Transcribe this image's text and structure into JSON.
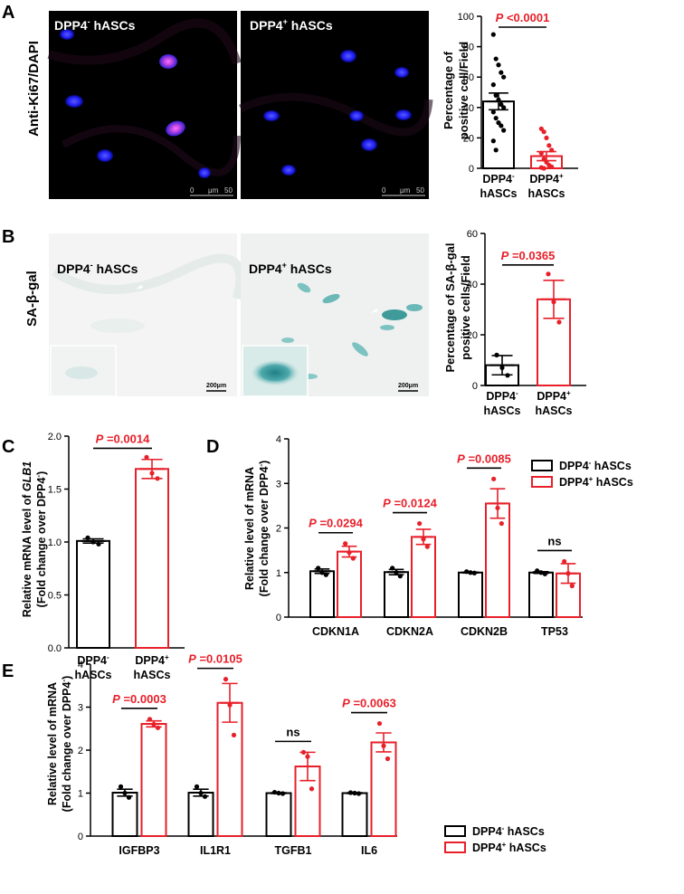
{
  "colors": {
    "black": "#000000",
    "red": "#e8202a",
    "nuclei": "#1c1cf0",
    "stain": "#2f9a9a"
  },
  "panels": {
    "A": {
      "letter": "A",
      "side_label": "Anti-Ki67/DAPI",
      "image_labels": [
        "DPP4",
        "DPP4"
      ],
      "image_sup": [
        "-",
        "+"
      ],
      "image_suffix": " hASCs",
      "scale_bar": [
        "0",
        "μm",
        "50"
      ]
    },
    "B": {
      "letter": "B",
      "side_label": "SA-β-gal",
      "image_labels": [
        "DPP4",
        "DPP4"
      ],
      "image_sup": [
        "-",
        "+"
      ],
      "image_suffix": " hASCs",
      "scale_bar": "200μm"
    },
    "C": {
      "letter": "C"
    },
    "D": {
      "letter": "D"
    },
    "E": {
      "letter": "E"
    }
  },
  "chart_data": [
    {
      "id": "A",
      "type": "bar",
      "ylabel": [
        "Percentage of",
        "positive cell/Field"
      ],
      "ylim": [
        0,
        100
      ],
      "yticks": [
        0,
        20,
        40,
        60,
        80,
        100
      ],
      "categories": [
        [
          "DPP4",
          "-",
          "hASCs"
        ],
        [
          "DPP4",
          "+",
          "hASCs"
        ]
      ],
      "values": [
        44,
        8
      ],
      "errors": [
        5.5,
        3
      ],
      "points": [
        [
          88,
          72,
          68,
          63,
          60,
          55,
          48,
          45,
          42,
          40,
          37,
          33,
          30,
          28,
          25,
          18,
          12
        ],
        [
          26,
          24,
          20,
          15,
          12,
          10,
          6,
          4,
          2,
          1,
          0.5,
          0
        ]
      ],
      "annotations": [
        {
          "label": "P <0.0001",
          "pair": [
            0,
            1
          ]
        }
      ]
    },
    {
      "id": "B",
      "type": "bar",
      "ylabel": [
        "Percentage of SA-β-gal",
        "positive cells/Field"
      ],
      "ylim": [
        0,
        60
      ],
      "yticks": [
        0,
        20,
        40,
        60
      ],
      "categories": [
        [
          "DPP4",
          "-",
          "hASCs"
        ],
        [
          "DPP4",
          "+",
          "hASCs"
        ]
      ],
      "values": [
        8,
        34
      ],
      "errors": [
        3.8,
        7.5
      ],
      "points": [
        [
          12,
          7,
          4
        ],
        [
          44,
          33,
          25
        ]
      ],
      "annotations": [
        {
          "label": "P =0.0365",
          "pair": [
            0,
            1
          ]
        }
      ]
    },
    {
      "id": "C",
      "type": "bar",
      "ylabel": [
        "Relative mRNA level of ",
        "GLB1",
        "(Fold change over DPP4",
        "-",
        ")"
      ],
      "ylim": [
        0,
        2.0
      ],
      "yticks": [
        "0.0",
        "0.5",
        "1.0",
        "1.5",
        "2.0"
      ],
      "categories": [
        [
          "DPP4",
          "-",
          "hASCs"
        ],
        [
          "DPP4",
          "+",
          "hASCs"
        ]
      ],
      "values": [
        1.01,
        1.69
      ],
      "errors": [
        0.02,
        0.09
      ],
      "points": [
        [
          1.04,
          1.0,
          0.98
        ],
        [
          1.8,
          1.65,
          1.6
        ]
      ],
      "annotations": [
        {
          "label": "P =0.0014",
          "pair": [
            0,
            1
          ]
        }
      ]
    },
    {
      "id": "D",
      "type": "bar",
      "ylabel": [
        "Relative level of mRNA",
        "(Fold change over DPP4",
        "-",
        ")"
      ],
      "ylim": [
        0,
        4
      ],
      "yticks": [
        0,
        1,
        2,
        3,
        4
      ],
      "categories": [
        "CDKN1A",
        "CDKN2A",
        "CDKN2B",
        "TP53"
      ],
      "series": [
        {
          "name": "DPP4",
          "sup": "-",
          "suffix": " hASCs",
          "values": [
            1.03,
            1.01,
            1.0,
            1.0
          ],
          "errors": [
            0.05,
            0.06,
            0.01,
            0.02
          ],
          "points": [
            [
              1.1,
              1.0,
              0.95
            ],
            [
              1.1,
              1.0,
              0.92
            ],
            [
              1.02,
              1.0,
              0.99
            ],
            [
              1.04,
              1.0,
              0.97
            ]
          ]
        },
        {
          "name": "DPP4",
          "sup": "+",
          "suffix": " hASCs",
          "values": [
            1.47,
            1.8,
            2.55,
            0.98
          ],
          "errors": [
            0.12,
            0.17,
            0.33,
            0.22
          ],
          "points": [
            [
              1.65,
              1.45,
              1.32
            ],
            [
              2.1,
              1.75,
              1.58
            ],
            [
              3.1,
              2.45,
              2.1
            ],
            [
              1.25,
              0.98,
              0.7
            ]
          ]
        }
      ],
      "annotations": [
        {
          "label": "P =0.0294",
          "group": 0
        },
        {
          "label": "P =0.0124",
          "group": 1
        },
        {
          "label": "P =0.0085",
          "group": 2
        },
        {
          "label": "ns",
          "group": 3
        }
      ]
    },
    {
      "id": "E",
      "type": "bar",
      "ylabel": [
        "Relative level of mRNA",
        "(Fold change over DPP4",
        "-",
        ")"
      ],
      "ylim": [
        0,
        4
      ],
      "yticks": [
        0,
        1,
        2,
        3,
        4
      ],
      "categories": [
        "IGFBP3",
        "IL1R1",
        "TGFB1",
        "IL6"
      ],
      "series": [
        {
          "name": "DPP4",
          "sup": "-",
          "suffix": " hASCs",
          "values": [
            1.01,
            1.01,
            1.0,
            1.0
          ],
          "errors": [
            0.08,
            0.08,
            0.01,
            0.01
          ],
          "points": [
            [
              1.15,
              1.0,
              0.9
            ],
            [
              1.15,
              1.0,
              0.92
            ],
            [
              1.02,
              1.0,
              0.99
            ],
            [
              1.01,
              1.0,
              0.99
            ]
          ]
        },
        {
          "name": "DPP4",
          "sup": "+",
          "suffix": " hASCs",
          "values": [
            2.61,
            3.1,
            1.62,
            2.18
          ],
          "errors": [
            0.07,
            0.45,
            0.33,
            0.22
          ],
          "points": [
            [
              2.72,
              2.6,
              2.52
            ],
            [
              3.65,
              3.05,
              2.35
            ],
            [
              1.95,
              1.85,
              1.1
            ],
            [
              2.62,
              2.1,
              1.8
            ]
          ]
        }
      ],
      "annotations": [
        {
          "label": "P =0.0003",
          "group": 0
        },
        {
          "label": "P =0.0105",
          "group": 1
        },
        {
          "label": "ns",
          "group": 2
        },
        {
          "label": "P =0.0063",
          "group": 3
        }
      ]
    }
  ]
}
